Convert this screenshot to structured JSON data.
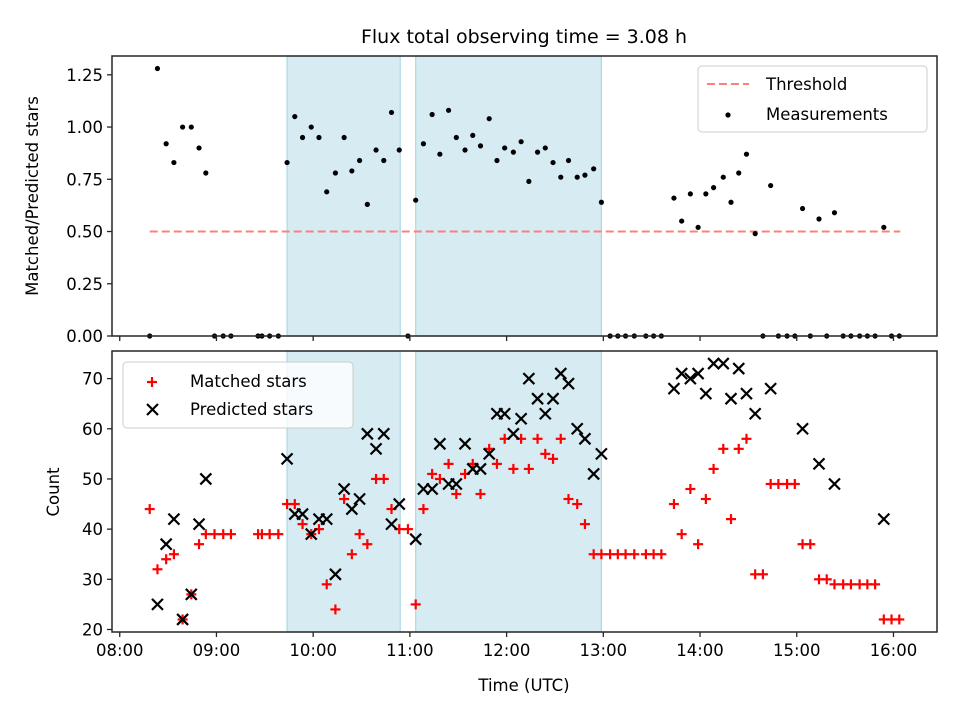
{
  "chart_data": [
    {
      "panel": "top",
      "type": "scatter",
      "title": "Flux total observing time = 3.08 h",
      "xlabel": "",
      "ylabel": "Matched/Predicted stars",
      "xlim": [
        7.92,
        16.45
      ],
      "ylim": [
        0.0,
        1.34
      ],
      "y_ticks": [
        0.0,
        0.25,
        0.5,
        0.75,
        1.0,
        1.25
      ],
      "y_tick_labels": [
        "0.00",
        "0.25",
        "0.50",
        "0.75",
        "1.00",
        "1.25"
      ],
      "x_ticks": [
        8,
        9,
        10,
        11,
        12,
        13,
        14,
        15,
        16
      ],
      "x_tick_labels_shown": false,
      "grid": false,
      "legend": {
        "position": "top-right",
        "entries": [
          "Threshold",
          "Measurements"
        ]
      },
      "shaded_spans": [
        [
          9.73,
          10.9
        ],
        [
          11.06,
          12.98
        ]
      ],
      "threshold": {
        "name": "Threshold",
        "value": 0.5,
        "x_range": [
          8.31,
          16.07
        ],
        "color": "#ff7f7f",
        "style": "dashed"
      },
      "series": [
        {
          "name": "Measurements",
          "marker": "dot",
          "color": "#000000",
          "x": [
            8.31,
            8.39,
            8.48,
            8.56,
            8.65,
            8.74,
            8.82,
            8.89,
            8.98,
            9.07,
            9.15,
            9.43,
            9.47,
            9.55,
            9.64,
            9.73,
            9.81,
            9.89,
            9.98,
            10.06,
            10.14,
            10.23,
            10.32,
            10.4,
            10.48,
            10.56,
            10.65,
            10.73,
            10.81,
            10.89,
            10.98,
            11.06,
            11.14,
            11.23,
            11.31,
            11.4,
            11.48,
            11.57,
            11.65,
            11.73,
            11.82,
            11.9,
            11.98,
            12.07,
            12.15,
            12.23,
            12.32,
            12.4,
            12.48,
            12.56,
            12.64,
            12.73,
            12.81,
            12.9,
            12.98,
            13.07,
            13.15,
            13.23,
            13.32,
            13.44,
            13.52,
            13.6,
            13.73,
            13.81,
            13.9,
            13.98,
            14.06,
            14.14,
            14.24,
            14.32,
            14.4,
            14.48,
            14.57,
            14.65,
            14.73,
            14.81,
            14.9,
            14.98,
            15.06,
            15.14,
            15.23,
            15.31,
            15.39,
            15.48,
            15.56,
            15.65,
            15.73,
            15.81,
            15.9,
            15.98,
            16.06
          ],
          "y": [
            0.0,
            1.28,
            0.92,
            0.83,
            1.0,
            1.0,
            0.9,
            0.78,
            0.0,
            0.0,
            0.0,
            0.0,
            0.0,
            0.0,
            0.0,
            0.83,
            1.05,
            0.95,
            1.0,
            0.95,
            0.69,
            0.78,
            0.95,
            0.79,
            0.84,
            0.63,
            0.89,
            0.84,
            1.07,
            0.89,
            0.0,
            0.65,
            0.92,
            1.06,
            0.87,
            1.08,
            0.95,
            0.89,
            0.96,
            0.91,
            1.04,
            0.84,
            0.9,
            0.88,
            0.93,
            0.74,
            0.88,
            0.9,
            0.83,
            0.76,
            0.84,
            0.76,
            0.77,
            0.8,
            0.64,
            0.0,
            0.0,
            0.0,
            0.0,
            0.0,
            0.0,
            0.0,
            0.66,
            0.55,
            0.68,
            0.52,
            0.68,
            0.71,
            0.76,
            0.64,
            0.78,
            0.87,
            0.49,
            0.0,
            0.72,
            0.0,
            0.0,
            0.0,
            0.61,
            0.0,
            0.56,
            0.0,
            0.59,
            0.0,
            0.0,
            0.0,
            0.0,
            0.0,
            0.52,
            0.0,
            0.0
          ]
        }
      ]
    },
    {
      "panel": "bottom",
      "type": "scatter",
      "title": "",
      "xlabel": "Time (UTC)",
      "ylabel": "Count",
      "xlim": [
        7.92,
        16.45
      ],
      "ylim": [
        19.5,
        75.5
      ],
      "y_ticks": [
        20,
        30,
        40,
        50,
        60,
        70
      ],
      "y_tick_labels": [
        "20",
        "30",
        "40",
        "50",
        "60",
        "70"
      ],
      "x_ticks": [
        8,
        9,
        10,
        11,
        12,
        13,
        14,
        15,
        16
      ],
      "x_tick_labels": [
        "08:00",
        "09:00",
        "10:00",
        "11:00",
        "12:00",
        "13:00",
        "14:00",
        "15:00",
        "16:00"
      ],
      "grid": false,
      "legend": {
        "position": "top-left",
        "entries": [
          "Matched stars",
          "Predicted stars"
        ]
      },
      "shaded_spans": [
        [
          9.73,
          10.9
        ],
        [
          11.06,
          12.98
        ]
      ],
      "series": [
        {
          "name": "Matched stars",
          "marker": "plus",
          "color": "#ff0000",
          "x": [
            8.31,
            8.39,
            8.48,
            8.56,
            8.65,
            8.74,
            8.82,
            8.89,
            8.98,
            9.07,
            9.15,
            9.43,
            9.47,
            9.55,
            9.64,
            9.73,
            9.81,
            9.89,
            9.98,
            10.06,
            10.14,
            10.23,
            10.32,
            10.4,
            10.48,
            10.56,
            10.65,
            10.73,
            10.81,
            10.89,
            10.98,
            11.06,
            11.14,
            11.23,
            11.31,
            11.4,
            11.48,
            11.57,
            11.65,
            11.73,
            11.82,
            11.9,
            11.98,
            12.07,
            12.15,
            12.23,
            12.32,
            12.4,
            12.48,
            12.56,
            12.64,
            12.73,
            12.81,
            12.9,
            12.98,
            13.07,
            13.15,
            13.23,
            13.32,
            13.44,
            13.52,
            13.6,
            13.73,
            13.81,
            13.9,
            13.98,
            14.06,
            14.14,
            14.24,
            14.32,
            14.4,
            14.48,
            14.57,
            14.65,
            14.73,
            14.81,
            14.9,
            14.98,
            15.06,
            15.14,
            15.23,
            15.31,
            15.39,
            15.48,
            15.56,
            15.65,
            15.73,
            15.81,
            15.9,
            15.98,
            16.06
          ],
          "y": [
            44,
            32,
            34,
            35,
            22,
            27,
            37,
            39,
            39,
            39,
            39,
            39,
            39,
            39,
            39,
            45,
            45,
            41,
            39,
            40,
            29,
            24,
            46,
            35,
            39,
            37,
            50,
            50,
            44,
            40,
            40,
            25,
            44,
            51,
            50,
            53,
            47,
            51,
            53,
            47,
            56,
            53,
            58,
            52,
            58,
            52,
            58,
            55,
            54,
            58,
            46,
            45,
            41,
            35,
            35,
            35,
            35,
            35,
            35,
            35,
            35,
            35,
            45,
            39,
            48,
            37,
            46,
            52,
            56,
            42,
            56,
            58,
            31,
            31,
            49,
            49,
            49,
            49,
            37,
            37,
            30,
            30,
            29,
            29,
            29,
            29,
            29,
            29,
            22,
            22,
            22
          ]
        },
        {
          "name": "Predicted stars",
          "marker": "x",
          "color": "#000000",
          "x": [
            8.39,
            8.48,
            8.56,
            8.65,
            8.74,
            8.82,
            8.89,
            9.73,
            9.81,
            9.89,
            9.98,
            10.06,
            10.14,
            10.23,
            10.32,
            10.4,
            10.48,
            10.56,
            10.65,
            10.73,
            10.81,
            10.89,
            11.06,
            11.14,
            11.23,
            11.31,
            11.4,
            11.48,
            11.57,
            11.65,
            11.73,
            11.82,
            11.9,
            11.98,
            12.07,
            12.15,
            12.23,
            12.32,
            12.4,
            12.48,
            12.56,
            12.64,
            12.73,
            12.81,
            12.9,
            12.98,
            13.73,
            13.81,
            13.9,
            13.98,
            14.06,
            14.14,
            14.24,
            14.32,
            14.4,
            14.48,
            14.57,
            14.73,
            15.06,
            15.23,
            15.39,
            15.9
          ],
          "y": [
            25,
            37,
            42,
            22,
            27,
            41,
            50,
            54,
            43,
            43,
            39,
            42,
            42,
            31,
            48,
            44,
            46,
            59,
            56,
            59,
            41,
            45,
            38,
            48,
            48,
            57,
            49,
            49,
            57,
            52,
            52,
            55,
            63,
            63,
            59,
            62,
            70,
            66,
            63,
            66,
            71,
            69,
            60,
            58,
            51,
            55,
            68,
            71,
            70,
            71,
            67,
            73,
            73,
            66,
            72,
            67,
            63,
            68,
            60,
            53,
            49,
            42
          ]
        }
      ]
    }
  ]
}
